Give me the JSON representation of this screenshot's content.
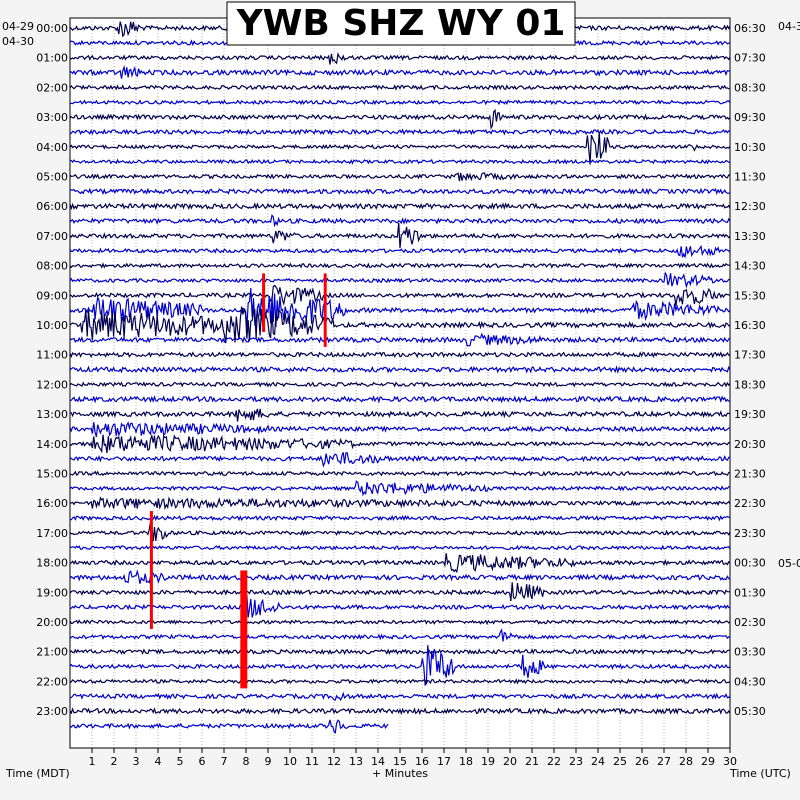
{
  "chart_data": {
    "type": "helicorder",
    "title": "YWB SHZ WY 01",
    "left_axis_title": "Time (MDT)",
    "right_axis_title": "Time (UTC)",
    "x_axis_title": "+ Minutes",
    "x_ticks": [
      "1",
      "2",
      "3",
      "4",
      "5",
      "6",
      "7",
      "8",
      "9",
      "10",
      "11",
      "12",
      "13",
      "14",
      "15",
      "16",
      "17",
      "18",
      "19",
      "20",
      "21",
      "22",
      "23",
      "24",
      "25",
      "26",
      "27",
      "28",
      "29",
      "30"
    ],
    "xlim": [
      0,
      30
    ],
    "left_date_top": "04-29",
    "left_date": "04-30",
    "right_date_top": "04-3",
    "right_date_mid": "05-0",
    "left_hours": [
      "00:00",
      "01:00",
      "02:00",
      "03:00",
      "04:00",
      "05:00",
      "06:00",
      "07:00",
      "08:00",
      "09:00",
      "10:00",
      "11:00",
      "12:00",
      "13:00",
      "14:00",
      "15:00",
      "16:00",
      "17:00",
      "18:00",
      "19:00",
      "20:00",
      "21:00",
      "22:00",
      "23:00"
    ],
    "right_hours": [
      "06:30",
      "07:30",
      "08:30",
      "09:30",
      "10:30",
      "11:30",
      "12:30",
      "13:30",
      "14:30",
      "15:30",
      "16:30",
      "17:30",
      "18:30",
      "19:30",
      "20:30",
      "21:30",
      "22:30",
      "23:30",
      "00:30",
      "01:30",
      "02:30",
      "03:30",
      "04:30",
      "05:30"
    ],
    "trace_count": 48,
    "trace_colors": [
      "#00004d",
      "#0000cc"
    ],
    "event_color": "#ff0000",
    "data_end_minute": 14.5,
    "events": [
      {
        "trace": 0,
        "minute": 2.2,
        "amp": 1.5,
        "dur": 1.0
      },
      {
        "trace": 2,
        "minute": 11.8,
        "amp": 1.0,
        "dur": 0.8
      },
      {
        "trace": 3,
        "minute": 2.3,
        "amp": 1.0,
        "dur": 1.0
      },
      {
        "trace": 6,
        "minute": 19.1,
        "amp": 1.6,
        "dur": 0.5
      },
      {
        "trace": 8,
        "minute": 23.5,
        "amp": 2.8,
        "dur": 1.0
      },
      {
        "trace": 8,
        "minute": 28.1,
        "amp": 1.0,
        "dur": 0.4
      },
      {
        "trace": 10,
        "minute": 17.5,
        "amp": 0.6,
        "dur": 3.0
      },
      {
        "trace": 13,
        "minute": 9.1,
        "amp": 0.8,
        "dur": 0.5
      },
      {
        "trace": 14,
        "minute": 9.2,
        "amp": 1.0,
        "dur": 1.0
      },
      {
        "trace": 14,
        "minute": 14.9,
        "amp": 2.0,
        "dur": 1.0
      },
      {
        "trace": 15,
        "minute": 27.5,
        "amp": 1.0,
        "dur": 2.0
      },
      {
        "trace": 17,
        "minute": 27.0,
        "amp": 1.0,
        "dur": 2.5
      },
      {
        "trace": 18,
        "minute": 9.0,
        "amp": 1.5,
        "dur": 2.5
      },
      {
        "trace": 18,
        "minute": 27.5,
        "amp": 1.5,
        "dur": 2.0
      },
      {
        "trace": 19,
        "minute": 1.0,
        "amp": 1.8,
        "dur": 5.0
      },
      {
        "trace": 19,
        "minute": 8.0,
        "amp": 2.8,
        "dur": 4.5
      },
      {
        "trace": 19,
        "minute": 25.5,
        "amp": 1.2,
        "dur": 4.0
      },
      {
        "trace": 20,
        "minute": 0.5,
        "amp": 2.0,
        "dur": 8.0
      },
      {
        "trace": 20,
        "minute": 7.0,
        "amp": 2.5,
        "dur": 5.0
      },
      {
        "trace": 21,
        "minute": 18.0,
        "amp": 0.8,
        "dur": 4.0
      },
      {
        "trace": 26,
        "minute": 7.5,
        "amp": 1.2,
        "dur": 1.5
      },
      {
        "trace": 27,
        "minute": 1.0,
        "amp": 1.0,
        "dur": 8.0
      },
      {
        "trace": 28,
        "minute": 1.0,
        "amp": 1.2,
        "dur": 12.0
      },
      {
        "trace": 29,
        "minute": 11.5,
        "amp": 1.0,
        "dur": 3.0
      },
      {
        "trace": 31,
        "minute": 13.0,
        "amp": 0.9,
        "dur": 6.0
      },
      {
        "trace": 32,
        "minute": 1.0,
        "amp": 0.7,
        "dur": 20.0
      },
      {
        "trace": 34,
        "minute": 3.6,
        "amp": 1.5,
        "dur": 1.0
      },
      {
        "trace": 36,
        "minute": 17.0,
        "amp": 1.2,
        "dur": 6.0
      },
      {
        "trace": 37,
        "minute": 2.5,
        "amp": 1.0,
        "dur": 2.0
      },
      {
        "trace": 38,
        "minute": 20.0,
        "amp": 1.5,
        "dur": 1.5
      },
      {
        "trace": 39,
        "minute": 8.0,
        "amp": 1.6,
        "dur": 1.5
      },
      {
        "trace": 41,
        "minute": 19.5,
        "amp": 1.0,
        "dur": 0.8
      },
      {
        "trace": 43,
        "minute": 16.0,
        "amp": 3.0,
        "dur": 1.5
      },
      {
        "trace": 43,
        "minute": 20.5,
        "amp": 1.8,
        "dur": 1.0
      },
      {
        "trace": 45,
        "minute": 12.0,
        "amp": 1.0,
        "dur": 0.6
      },
      {
        "trace": 47,
        "minute": 11.8,
        "amp": 1.2,
        "dur": 0.8
      }
    ],
    "red_marks": [
      {
        "trace": 33,
        "minute": 3.7,
        "trace_span": 7,
        "wide": false
      },
      {
        "trace": 37,
        "minute": 7.9,
        "trace_span": 7,
        "wide": true
      },
      {
        "trace": 17,
        "minute": 8.8,
        "trace_span": 3,
        "wide": false
      },
      {
        "trace": 17,
        "minute": 11.6,
        "trace_span": 4,
        "wide": false
      }
    ]
  }
}
